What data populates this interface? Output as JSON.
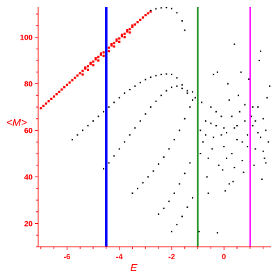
{
  "chart_data": {
    "type": "scatter",
    "xlabel": "E",
    "ylabel": "<M>",
    "xlim": [
      -7.1,
      1.8
    ],
    "ylim": [
      10,
      113
    ],
    "grid": false,
    "x_ticks": [
      -6,
      -4,
      -2,
      0
    ],
    "y_ticks": [
      20,
      40,
      60,
      80,
      100
    ],
    "colors": {
      "axes": "#ff0000",
      "highlight_points": "#ff0000",
      "points": "#000000",
      "line_blue": "#0000ff",
      "line_green": "#008000",
      "line_magenta": "#ff00ff"
    },
    "vertical_lines": [
      {
        "x": -4.5,
        "color": "#0000ff"
      },
      {
        "x": -1.0,
        "color": "#008000"
      },
      {
        "x": 1.0,
        "color": "#ff00ff"
      }
    ],
    "series": [
      {
        "color": "#ff0000",
        "points": [
          [
            -7.0,
            69.5
          ],
          [
            -6.9,
            70.5
          ],
          [
            -6.8,
            71.5
          ],
          [
            -6.7,
            72.5
          ],
          [
            -6.6,
            73.5
          ],
          [
            -6.5,
            74.5
          ],
          [
            -6.4,
            75.5
          ],
          [
            -6.3,
            76.5
          ],
          [
            -6.2,
            77.5
          ],
          [
            -6.1,
            78.5
          ],
          [
            -6.0,
            79.5
          ],
          [
            -5.9,
            80.5
          ],
          [
            -5.8,
            81.5
          ],
          [
            -5.7,
            82.5
          ],
          [
            -5.6,
            83.5
          ],
          [
            -5.5,
            84.5
          ],
          [
            -5.4,
            85.5
          ],
          [
            -5.3,
            86.5
          ],
          [
            -5.2,
            87.5
          ],
          [
            -5.1,
            88.5
          ],
          [
            -5.0,
            89.5
          ],
          [
            -4.9,
            90.5
          ],
          [
            -4.8,
            91.5
          ],
          [
            -4.7,
            92.5
          ],
          [
            -4.6,
            93.5
          ],
          [
            -4.5,
            94.5
          ],
          [
            -4.4,
            95.5
          ],
          [
            -4.3,
            96.5
          ],
          [
            -4.2,
            97.5
          ],
          [
            -4.1,
            98.5
          ],
          [
            -4.0,
            99.5
          ],
          [
            -3.9,
            100.5
          ],
          [
            -3.8,
            101.5
          ],
          [
            -3.7,
            102.5
          ],
          [
            -3.6,
            103.5
          ],
          [
            -3.5,
            104.5
          ],
          [
            -3.4,
            105.5
          ],
          [
            -3.3,
            106.5
          ],
          [
            -3.2,
            107.5
          ],
          [
            -3.1,
            108.5
          ],
          [
            -3.0,
            109.5
          ],
          [
            -2.9,
            110.3
          ],
          [
            -2.8,
            111.0
          ],
          [
            -5.4,
            84.0
          ],
          [
            -5.2,
            86.0
          ],
          [
            -5.0,
            88.0
          ],
          [
            -4.8,
            90.0
          ],
          [
            -4.6,
            92.0
          ],
          [
            -4.4,
            94.0
          ],
          [
            -4.2,
            96.0
          ],
          [
            -4.0,
            98.0
          ],
          [
            -3.8,
            100.0
          ],
          [
            -3.6,
            102.0
          ],
          [
            -5.3,
            87.0
          ],
          [
            -5.1,
            89.0
          ],
          [
            -4.9,
            91.0
          ],
          [
            -4.7,
            93.0
          ],
          [
            -4.5,
            95.0
          ],
          [
            -4.3,
            97.0
          ],
          [
            -4.1,
            99.0
          ],
          [
            -3.9,
            101.0
          ],
          [
            -3.7,
            103.0
          ],
          [
            -3.5,
            105.0
          ]
        ]
      },
      {
        "color": "#000000",
        "points": [
          [
            -2.8,
            111.5
          ],
          [
            -2.6,
            112.2
          ],
          [
            -2.4,
            112.6
          ],
          [
            -2.2,
            112.7
          ],
          [
            -2.0,
            112.3
          ],
          [
            -1.8,
            110.5
          ],
          [
            -1.6,
            107.0
          ],
          [
            -1.5,
            103.0
          ],
          [
            -5.8,
            56.0
          ],
          [
            -5.6,
            58.0
          ],
          [
            -5.4,
            60.0
          ],
          [
            -5.2,
            62.0
          ],
          [
            -5.0,
            64.0
          ],
          [
            -4.8,
            66.0
          ],
          [
            -4.6,
            68.0
          ],
          [
            -4.4,
            70.0
          ],
          [
            -4.2,
            72.0
          ],
          [
            -4.0,
            74.0
          ],
          [
            -3.8,
            76.0
          ],
          [
            -3.6,
            77.5
          ],
          [
            -3.4,
            79.0
          ],
          [
            -3.2,
            80.5
          ],
          [
            -3.0,
            81.8
          ],
          [
            -2.8,
            82.8
          ],
          [
            -2.6,
            83.5
          ],
          [
            -2.4,
            84.0
          ],
          [
            -2.2,
            84.2
          ],
          [
            -2.0,
            84.0
          ],
          [
            -1.8,
            82.5
          ],
          [
            -1.6,
            79.5
          ],
          [
            -1.4,
            77.0
          ],
          [
            -1.2,
            76.5
          ],
          [
            -4.6,
            43.5
          ],
          [
            -4.4,
            46.0
          ],
          [
            -4.2,
            49.0
          ],
          [
            -4.0,
            52.0
          ],
          [
            -3.8,
            55.0
          ],
          [
            -3.6,
            58.0
          ],
          [
            -3.4,
            61.0
          ],
          [
            -3.2,
            64.0
          ],
          [
            -3.0,
            67.0
          ],
          [
            -2.8,
            70.0
          ],
          [
            -2.6,
            72.5
          ],
          [
            -2.4,
            75.0
          ],
          [
            -2.2,
            77.0
          ],
          [
            -2.0,
            78.5
          ],
          [
            -1.8,
            79.0
          ],
          [
            -1.6,
            78.0
          ],
          [
            -1.4,
            76.0
          ],
          [
            -1.2,
            73.0
          ],
          [
            -3.5,
            33.0
          ],
          [
            -3.3,
            35.0
          ],
          [
            -3.1,
            37.5
          ],
          [
            -2.9,
            40.0
          ],
          [
            -2.7,
            42.5
          ],
          [
            -2.5,
            45.5
          ],
          [
            -2.3,
            48.5
          ],
          [
            -2.1,
            52.0
          ],
          [
            -1.9,
            56.0
          ],
          [
            -1.7,
            60.0
          ],
          [
            -1.5,
            65.0
          ],
          [
            -1.3,
            70.0
          ],
          [
            -1.1,
            74.0
          ],
          [
            -2.5,
            24.0
          ],
          [
            -2.3,
            26.5
          ],
          [
            -2.1,
            29.5
          ],
          [
            -1.9,
            33.0
          ],
          [
            -1.7,
            37.0
          ],
          [
            -1.5,
            41.5
          ],
          [
            -1.3,
            46.0
          ],
          [
            -2.0,
            16.5
          ],
          [
            -1.8,
            19.5
          ],
          [
            -1.6,
            23.0
          ],
          [
            -1.4,
            27.0
          ],
          [
            -1.2,
            31.0
          ],
          [
            -0.9,
            60.0
          ],
          [
            -0.8,
            55.0
          ],
          [
            -0.7,
            64.0
          ],
          [
            -0.6,
            48.0
          ],
          [
            -0.5,
            70.0
          ],
          [
            -0.4,
            57.0
          ],
          [
            -0.3,
            62.0
          ],
          [
            -0.2,
            45.0
          ],
          [
            -0.1,
            66.0
          ],
          [
            0.0,
            53.0
          ],
          [
            0.1,
            59.0
          ],
          [
            0.2,
            73.0
          ],
          [
            0.3,
            50.0
          ],
          [
            0.4,
            61.0
          ],
          [
            0.5,
            56.0
          ],
          [
            0.6,
            68.0
          ],
          [
            0.7,
            47.0
          ],
          [
            0.8,
            64.0
          ],
          [
            0.9,
            58.0
          ],
          [
            1.1,
            62.0
          ],
          [
            1.2,
            52.0
          ],
          [
            1.3,
            70.0
          ],
          [
            1.4,
            57.0
          ],
          [
            1.5,
            65.0
          ],
          [
            1.6,
            60.0
          ],
          [
            1.7,
            55.0
          ],
          [
            -0.85,
            72.0
          ],
          [
            -0.65,
            40.0
          ],
          [
            -0.45,
            52.0
          ],
          [
            -0.25,
            85.0
          ],
          [
            -0.05,
            43.0
          ],
          [
            0.15,
            80.0
          ],
          [
            0.35,
            38.0
          ],
          [
            0.55,
            75.0
          ],
          [
            0.75,
            42.0
          ],
          [
            0.95,
            82.0
          ],
          [
            1.15,
            45.0
          ],
          [
            1.35,
            90.0
          ],
          [
            1.55,
            48.0
          ],
          [
            1.75,
            79.0
          ],
          [
            -0.7,
            58.0
          ],
          [
            -0.3,
            68.0
          ],
          [
            0.1,
            48.0
          ],
          [
            0.5,
            62.0
          ],
          [
            0.9,
            53.0
          ],
          [
            1.3,
            59.0
          ],
          [
            -0.9,
            50.0
          ],
          [
            -0.1,
            58.0
          ],
          [
            0.3,
            66.0
          ],
          [
            0.7,
            55.0
          ],
          [
            1.1,
            70.0
          ],
          [
            1.5,
            51.0
          ],
          [
            -0.5,
            63.0
          ],
          [
            0.0,
            61.0
          ],
          [
            0.4,
            44.0
          ],
          [
            0.8,
            71.0
          ],
          [
            1.2,
            64.0
          ],
          [
            1.6,
            46.0
          ],
          [
            -0.6,
            33.0
          ],
          [
            0.2,
            37.0
          ],
          [
            -0.4,
            84.0
          ],
          [
            0.4,
            97.0
          ],
          [
            1.4,
            94.0
          ],
          [
            -0.95,
            16.5
          ],
          [
            -0.25,
            16.0
          ],
          [
            0.05,
            34.0
          ],
          [
            0.65,
            85.0
          ],
          [
            1.05,
            66.0
          ],
          [
            1.45,
            39.0
          ],
          [
            1.65,
            74.0
          ]
        ]
      }
    ]
  }
}
